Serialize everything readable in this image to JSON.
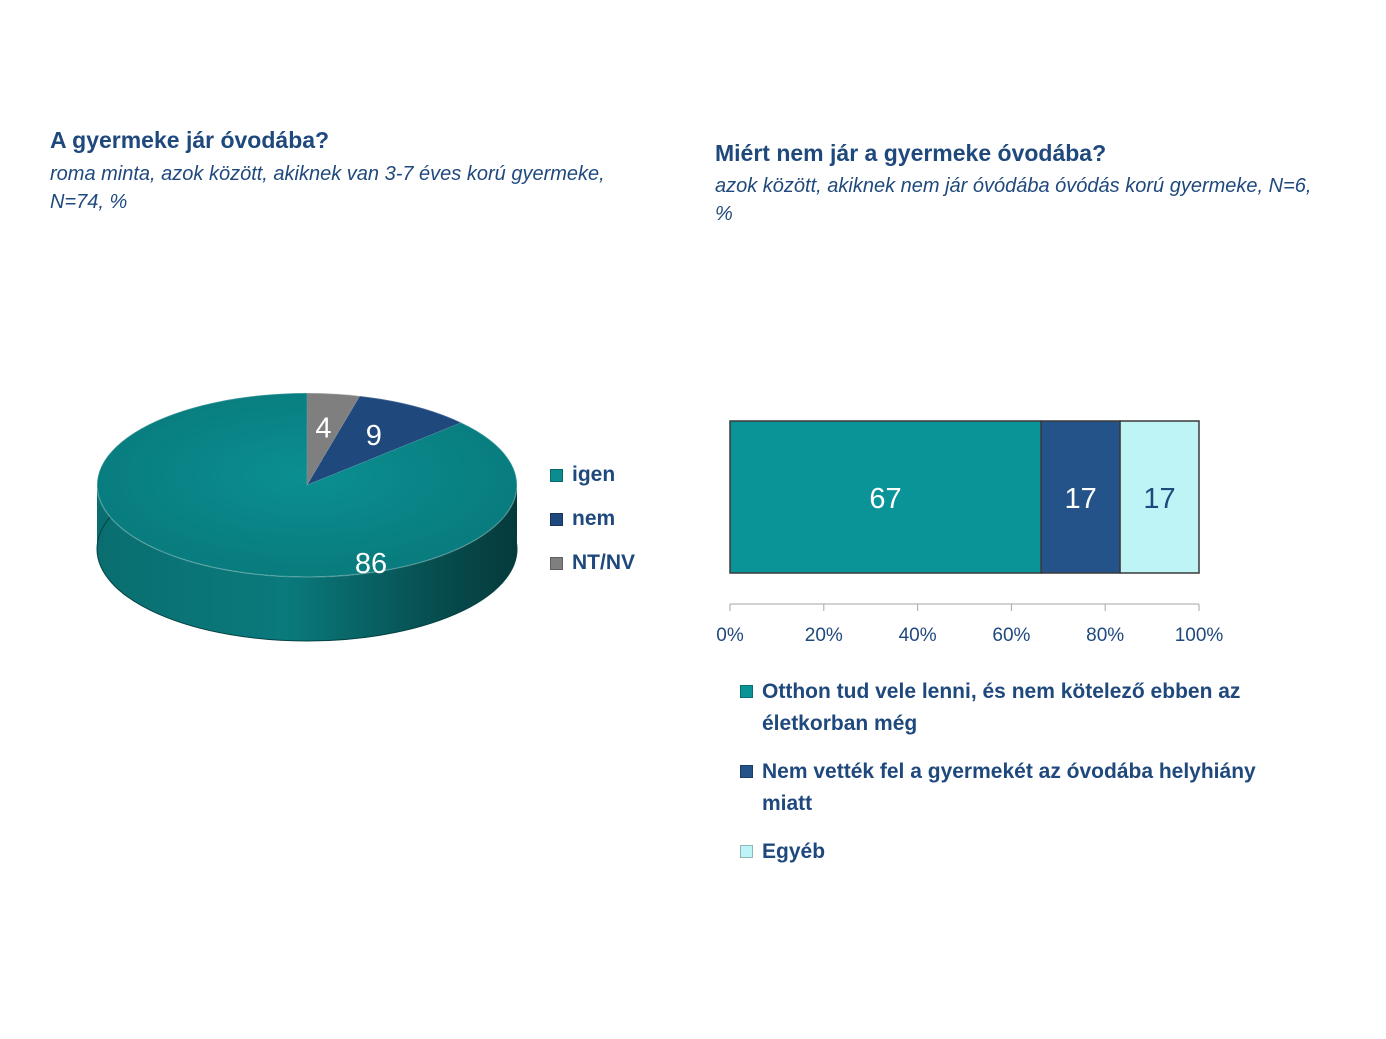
{
  "left": {
    "title": "A gyermeke jár óvodába?",
    "subtitle": "roma minta, azok között, akiknek van 3-7 éves korú gyermeke, N=74, %"
  },
  "right": {
    "title": "Miért nem jár a gyermeke óvodába?",
    "subtitle": "azok között, akiknek nem jár óvódába óvódás korú gyermeke, N=6, %"
  },
  "chart_data": [
    {
      "type": "pie",
      "title": "A gyermeke jár óvodába?",
      "categories": [
        "igen",
        "nem",
        "NT/NV"
      ],
      "values": [
        86,
        9,
        4
      ],
      "colors": [
        "#0B8C8E",
        "#1F497D",
        "#7F7F7F"
      ],
      "legend_position": "right"
    },
    {
      "type": "bar",
      "orientation": "horizontal-stacked-100",
      "title": "Miért nem jár a gyermeke óvodába?",
      "categories": [
        "Otthon tud vele lenni, és nem kötelező ebben az életkorban még",
        "Nem vették fel a gyermekét az óvodába helyhiány miatt",
        "Egyéb"
      ],
      "values": [
        67,
        17,
        17
      ],
      "colors": [
        "#0B9498",
        "#24538A",
        "#BFF4F7"
      ],
      "label_colors": [
        "#ffffff",
        "#ffffff",
        "#1F497D"
      ],
      "x_ticks": [
        "0%",
        "20%",
        "40%",
        "60%",
        "80%",
        "100%"
      ],
      "xlim": [
        0,
        100
      ],
      "legend_position": "bottom"
    }
  ]
}
